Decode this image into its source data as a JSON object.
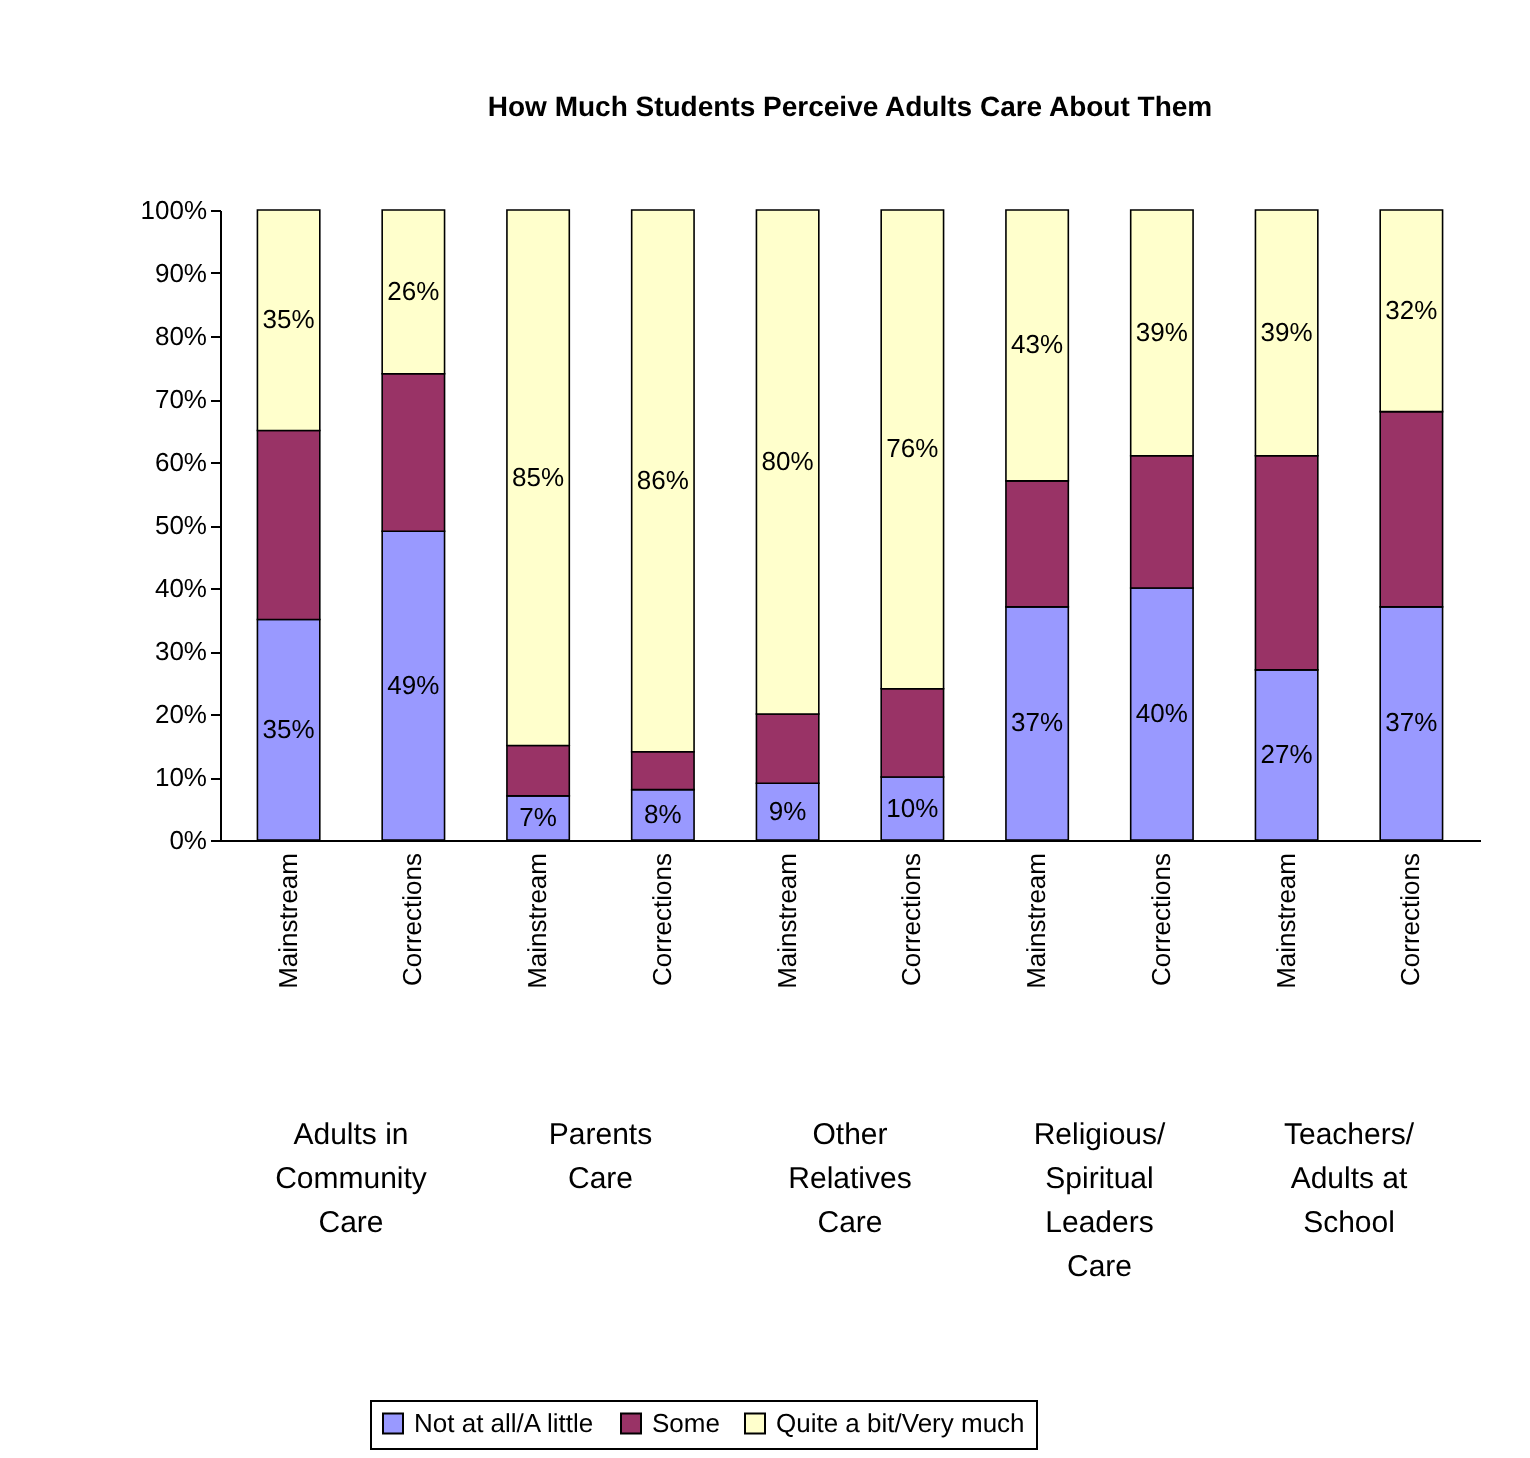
{
  "chart_data": {
    "type": "bar",
    "title": "How Much Students Perceive Adults Care About Them",
    "stacked": true,
    "categories": [
      "Mainstream",
      "Corrections",
      "Mainstream",
      "Corrections",
      "Mainstream",
      "Corrections",
      "Mainstream",
      "Corrections",
      "Mainstream",
      "Corrections"
    ],
    "series": [
      {
        "name": "Not at all/A little",
        "color": "#9999ff",
        "values": [
          35,
          49,
          7,
          8,
          9,
          10,
          37,
          40,
          27,
          37
        ],
        "value_labels": [
          "35%",
          "49%",
          "7%",
          "8%",
          "9%",
          "10%",
          "37%",
          "40%",
          "27%",
          "37%"
        ]
      },
      {
        "name": "Some",
        "color": "#993366",
        "values": [
          30,
          25,
          8,
          6,
          11,
          14,
          20,
          21,
          34,
          31
        ]
      },
      {
        "name": "Quite a bit/Very much",
        "color": "#ffffcc",
        "values": [
          35,
          26,
          85,
          86,
          80,
          76,
          43,
          39,
          39,
          32
        ],
        "value_labels": [
          "35%",
          "26%",
          "85%",
          "86%",
          "80%",
          "76%",
          "43%",
          "39%",
          "39%",
          "32%"
        ]
      }
    ],
    "ylim": [
      0,
      100
    ],
    "yticks": [
      {
        "value": 0,
        "label": "0%"
      },
      {
        "value": 10,
        "label": "10%"
      },
      {
        "value": 20,
        "label": "20%"
      },
      {
        "value": 30,
        "label": "30%"
      },
      {
        "value": 40,
        "label": "40%"
      },
      {
        "value": 50,
        "label": "50%"
      },
      {
        "value": 60,
        "label": "60%"
      },
      {
        "value": 70,
        "label": "70%"
      },
      {
        "value": 80,
        "label": "80%"
      },
      {
        "value": 90,
        "label": "90%"
      },
      {
        "value": 100,
        "label": "100%"
      }
    ],
    "grid": false,
    "legend": "bottom",
    "annotations": [
      "Adults in Community Care",
      "Parents Care",
      "Other Relatives Care",
      "Religious/ Spiritual Leaders Care",
      "Teachers/ Adults at School"
    ]
  }
}
